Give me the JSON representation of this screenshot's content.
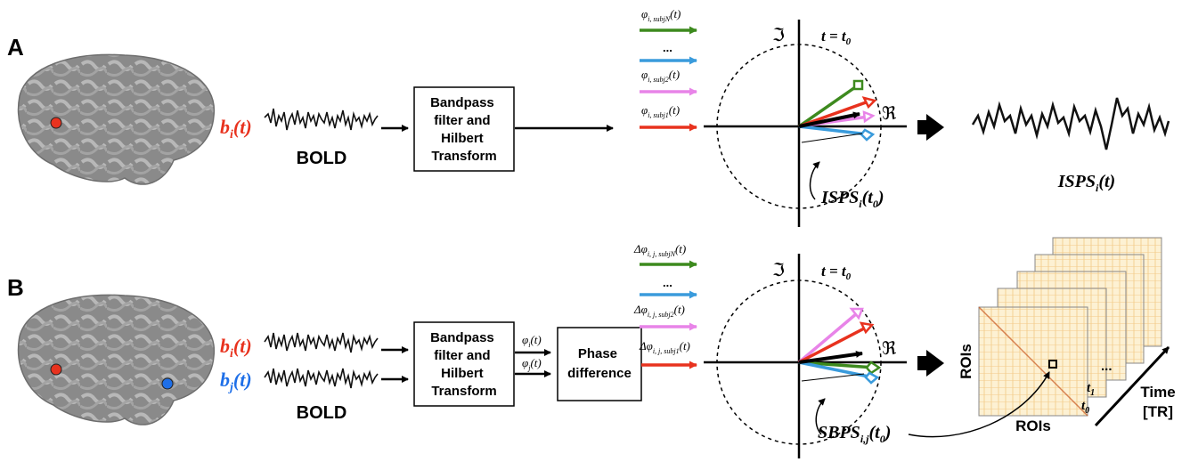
{
  "panels": [
    {
      "letter": "A",
      "signal_labels": [
        {
          "main": "b",
          "sub": "i",
          "arg": "(t)",
          "color": "#e8321e"
        }
      ],
      "bold_label": "BOLD",
      "box1": [
        "Bandpass",
        "filter and",
        "Hilbert",
        "Transform"
      ],
      "arrows": [
        {
          "label": "φ",
          "sub": "i, subjN",
          "arg": "(t)",
          "color": "#3d8a1e"
        },
        {
          "label": "...",
          "sub": "",
          "arg": "",
          "color": "#3a9bdc"
        },
        {
          "label": "φ",
          "sub": "i, subj2",
          "arg": "(t)",
          "color": "#e884e8"
        },
        {
          "label": "φ",
          "sub": "i, subj1",
          "arg": "(t)",
          "color": "#e8321e"
        }
      ],
      "time_label": "t = t",
      "time_sub": "0",
      "real_symbol": "ℜ",
      "imag_symbol": "ℑ",
      "measure": {
        "main": "ISPS",
        "sub": "i",
        "arg": "(t",
        "argsub": "0",
        "close": ")"
      },
      "output_label": {
        "main": "ISPS",
        "sub": "i",
        "arg": "(t)"
      }
    },
    {
      "letter": "B",
      "signal_labels": [
        {
          "main": "b",
          "sub": "i",
          "arg": "(t)",
          "color": "#e8321e"
        },
        {
          "main": "b",
          "sub": "j",
          "arg": "(t)",
          "color": "#1e6fe8"
        }
      ],
      "bold_label": "BOLD",
      "box1": [
        "Bandpass",
        "filter and",
        "Hilbert",
        "Transform"
      ],
      "phi_labels": [
        {
          "label": "φ",
          "sub": "i",
          "arg": "(t)"
        },
        {
          "label": "φ",
          "sub": "j",
          "arg": "(t)"
        }
      ],
      "box2": [
        "Phase",
        "difference"
      ],
      "arrows": [
        {
          "label": "Δφ",
          "sub": "i, j, subjN",
          "arg": "(t)",
          "color": "#3d8a1e"
        },
        {
          "label": "...",
          "sub": "",
          "arg": "",
          "color": "#3a9bdc"
        },
        {
          "label": "Δφ",
          "sub": "i, j, subj2",
          "arg": "(t)",
          "color": "#e884e8"
        },
        {
          "label": "Δφ",
          "sub": "i, j, subj1",
          "arg": "(t)",
          "color": "#e8321e"
        }
      ],
      "time_label": "t = t",
      "time_sub": "0",
      "real_symbol": "ℜ",
      "imag_symbol": "ℑ",
      "measure": {
        "main": "SBPS",
        "sub": "i,j",
        "arg": "(t",
        "argsub": "0",
        "close": ")"
      },
      "matrix_labels": {
        "rois_y": "ROIs",
        "rois_x": "ROIs",
        "t0": "t",
        "t0_sub": "0",
        "t1": "t",
        "t1_sub": "1",
        "dots": "...",
        "time": "Time",
        "tr": "[TR]"
      }
    }
  ],
  "colors": {
    "green": "#3d8a1e",
    "blue": "#3a9bdc",
    "pink": "#e884e8",
    "red": "#e8321e",
    "brain": "#8c8c8c",
    "brain_light": "#b5b5b5"
  }
}
